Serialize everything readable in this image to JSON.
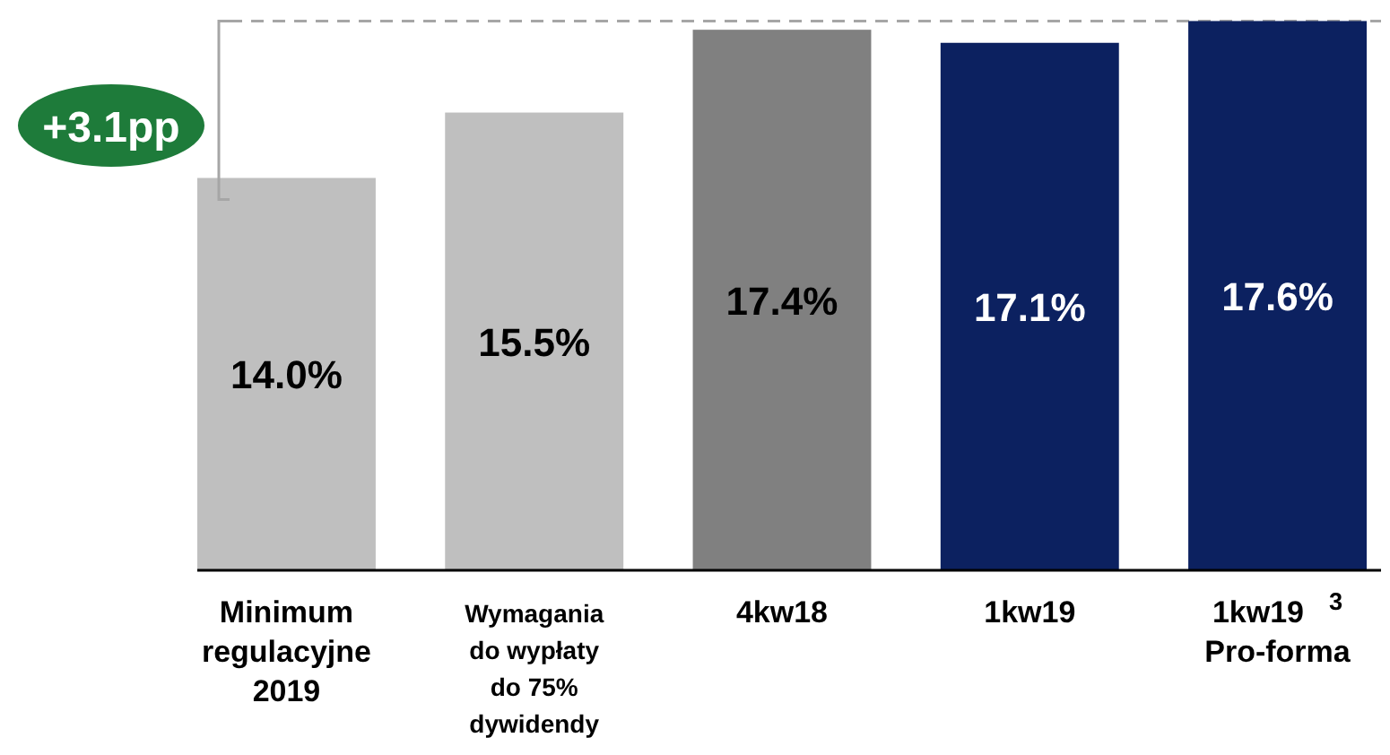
{
  "chart_data": {
    "type": "bar",
    "categories": [
      "Minimum\nregulacyjne\n2019",
      "Wymagania\ndo wypłaty\ndo 75%\ndywidendy",
      "4kw18",
      "1kw19",
      "1kw19$^{3}$\nPro-forma"
    ],
    "values": [
      14.0,
      15.5,
      17.4,
      17.1,
      17.6
    ],
    "colors": [
      "#bfbfbf",
      "#bfbfbf",
      "#808080",
      "#0c2160",
      "#0c2160"
    ],
    "value_labels": [
      "14.0%",
      "15.5%",
      "17.4%",
      "17.1%",
      "17.6%"
    ],
    "ylim": [
      5,
      18
    ],
    "tick_labels": "x",
    "ref_lines": [
      {
        "axis": "y",
        "value": 17.6,
        "color": "#a6a6a6",
        "line_style": "dashed"
      }
    ],
    "annotations": [
      "+3.1pp"
    ]
  }
}
